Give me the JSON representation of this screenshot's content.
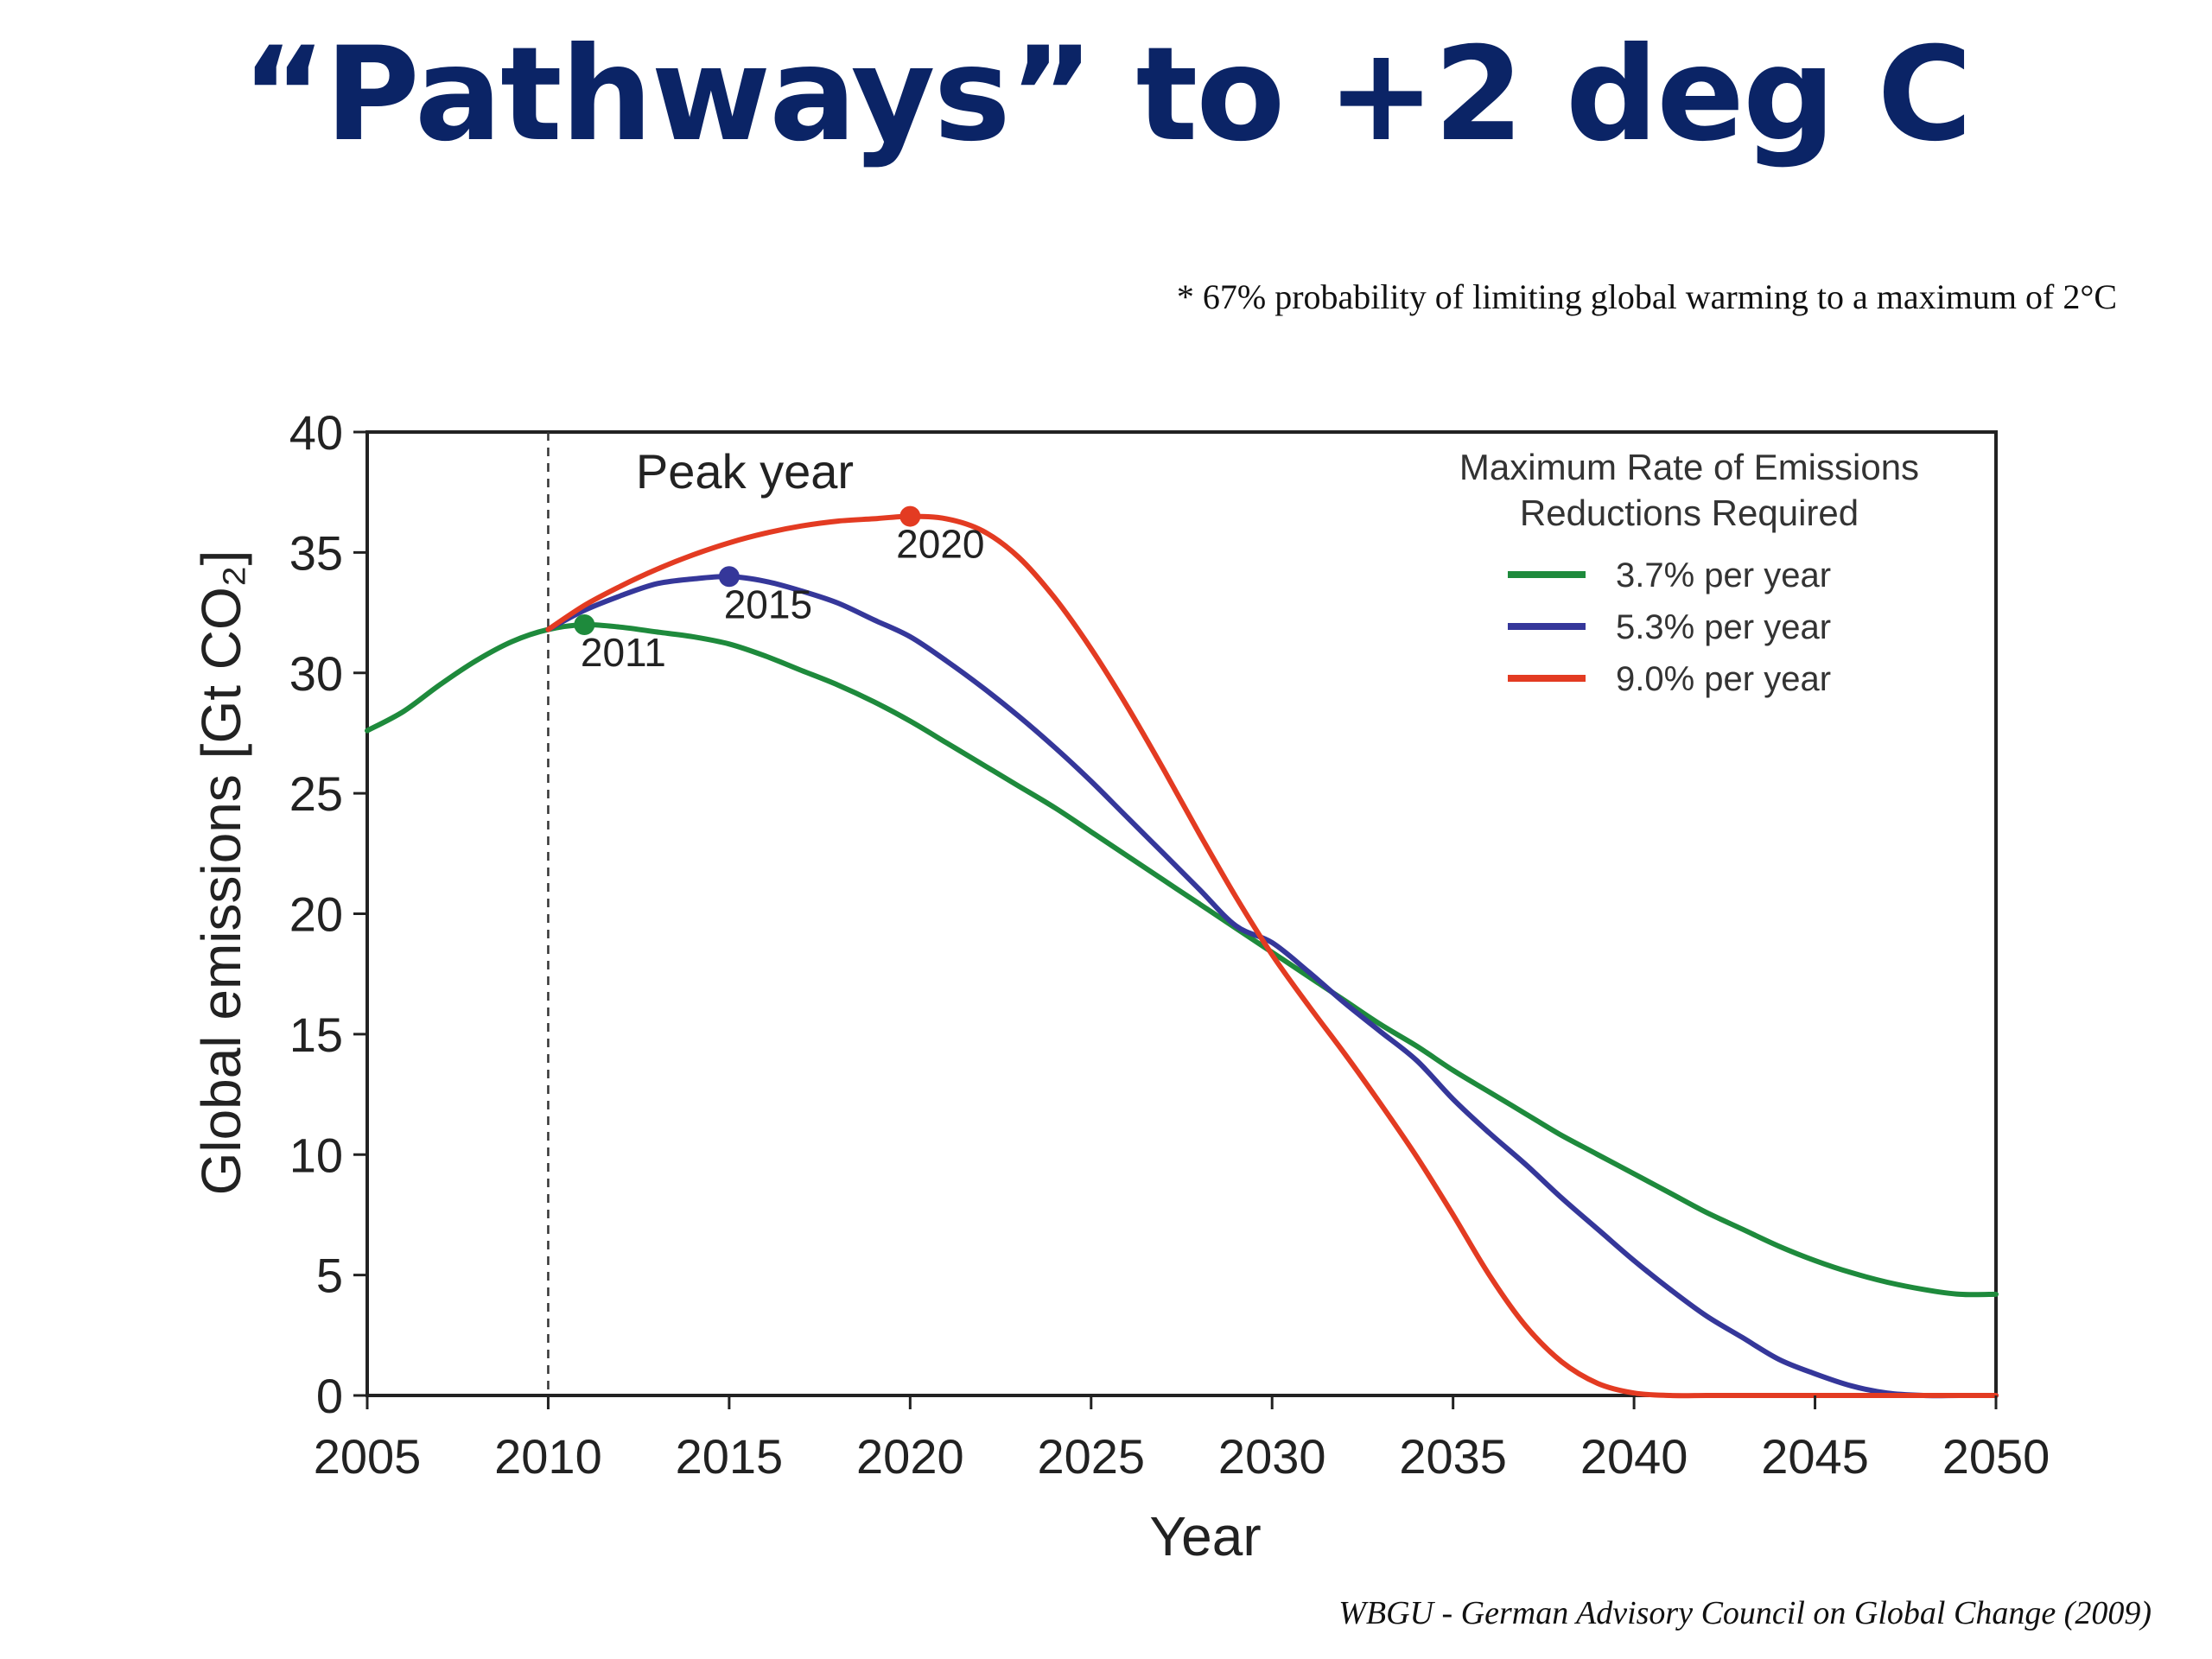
{
  "title": "“Pathways” to +2 deg C",
  "footnote": "* 67% probability of limiting global warming to a maximum of 2°C",
  "source": "WBGU - German Advisory Council on Global Change (2009)",
  "chart_data": {
    "type": "line",
    "xlabel": "Year",
    "ylabel": "Global emissions [Gt CO₂]",
    "xlim": [
      2005,
      2050
    ],
    "ylim": [
      0,
      40
    ],
    "xticks": [
      "2005",
      "2010",
      "2015",
      "2020",
      "2025",
      "2030",
      "2035",
      "2040",
      "2045",
      "2050"
    ],
    "yticks": [
      "0",
      "5",
      "10",
      "15",
      "20",
      "25",
      "30",
      "35",
      "40"
    ],
    "grid": false,
    "legend": {
      "title_line1": "Maximum Rate of Emissions",
      "title_line2": "Reductions Required",
      "placement": "top-right"
    },
    "annotations": {
      "peak_label": "Peak year",
      "reference_line_x": 2010
    },
    "series": [
      {
        "name": "3.7% per year",
        "color": "#1e8a3c",
        "peak": {
          "x": 2011,
          "y": 32,
          "label": "2011"
        },
        "x": [
          2005,
          2006,
          2007,
          2008,
          2009,
          2010,
          2011,
          2012,
          2013,
          2014,
          2015,
          2016,
          2017,
          2018,
          2019,
          2020,
          2021,
          2022,
          2023,
          2024,
          2025,
          2026,
          2027,
          2028,
          2029,
          2030,
          2031,
          2032,
          2033,
          2034,
          2035,
          2036,
          2037,
          2038,
          2039,
          2040,
          2041,
          2042,
          2043,
          2044,
          2045,
          2046,
          2047,
          2048,
          2049,
          2050
        ],
        "y": [
          27.6,
          28.4,
          29.5,
          30.5,
          31.3,
          31.8,
          32.0,
          31.9,
          31.7,
          31.5,
          31.2,
          30.7,
          30.1,
          29.5,
          28.8,
          28.0,
          27.1,
          26.2,
          25.3,
          24.4,
          23.4,
          22.4,
          21.4,
          20.4,
          19.4,
          18.4,
          17.4,
          16.4,
          15.4,
          14.5,
          13.5,
          12.6,
          11.7,
          10.8,
          10.0,
          9.2,
          8.4,
          7.6,
          6.9,
          6.2,
          5.6,
          5.1,
          4.7,
          4.4,
          4.2,
          4.2
        ]
      },
      {
        "name": "5.3% per year",
        "color": "#35379a",
        "peak": {
          "x": 2015,
          "y": 34,
          "label": "2015"
        },
        "x": [
          2010,
          2011,
          2012,
          2013,
          2014,
          2015,
          2016,
          2017,
          2018,
          2019,
          2020,
          2021,
          2022,
          2023,
          2024,
          2025,
          2026,
          2027,
          2028,
          2029,
          2030,
          2031,
          2032,
          2033,
          2034,
          2035,
          2036,
          2037,
          2038,
          2039,
          2040,
          2041,
          2042,
          2043,
          2044,
          2045,
          2046,
          2047,
          2048,
          2049,
          2050
        ],
        "y": [
          31.8,
          32.6,
          33.2,
          33.7,
          33.9,
          34.0,
          33.8,
          33.4,
          32.9,
          32.2,
          31.5,
          30.5,
          29.4,
          28.2,
          26.9,
          25.5,
          24.0,
          22.5,
          21.0,
          19.5,
          18.8,
          17.6,
          16.3,
          15.1,
          13.9,
          12.3,
          10.9,
          9.6,
          8.2,
          6.9,
          5.6,
          4.4,
          3.3,
          2.4,
          1.5,
          0.9,
          0.4,
          0.1,
          0.0,
          0.0,
          0.0
        ]
      },
      {
        "name": "9.0% per year",
        "color": "#e33b22",
        "peak": {
          "x": 2020,
          "y": 36.5,
          "label": "2020"
        },
        "x": [
          2010,
          2011,
          2012,
          2013,
          2014,
          2015,
          2016,
          2017,
          2018,
          2019,
          2020,
          2021,
          2022,
          2023,
          2024,
          2025,
          2026,
          2027,
          2028,
          2029,
          2030,
          2031,
          2032,
          2033,
          2034,
          2035,
          2036,
          2037,
          2038,
          2039,
          2040,
          2041,
          2042,
          2043,
          2044,
          2045,
          2046,
          2047,
          2048,
          2049,
          2050
        ],
        "y": [
          31.8,
          32.8,
          33.6,
          34.3,
          34.9,
          35.4,
          35.8,
          36.1,
          36.3,
          36.4,
          36.5,
          36.4,
          35.9,
          34.8,
          33.1,
          31.0,
          28.6,
          26.0,
          23.3,
          20.7,
          18.3,
          16.2,
          14.2,
          12.1,
          9.9,
          7.5,
          5.0,
          2.9,
          1.4,
          0.5,
          0.1,
          0.0,
          0.0,
          0.0,
          0.0,
          0.0,
          0.0,
          0.0,
          0.0,
          0.0,
          0.0
        ]
      }
    ]
  }
}
